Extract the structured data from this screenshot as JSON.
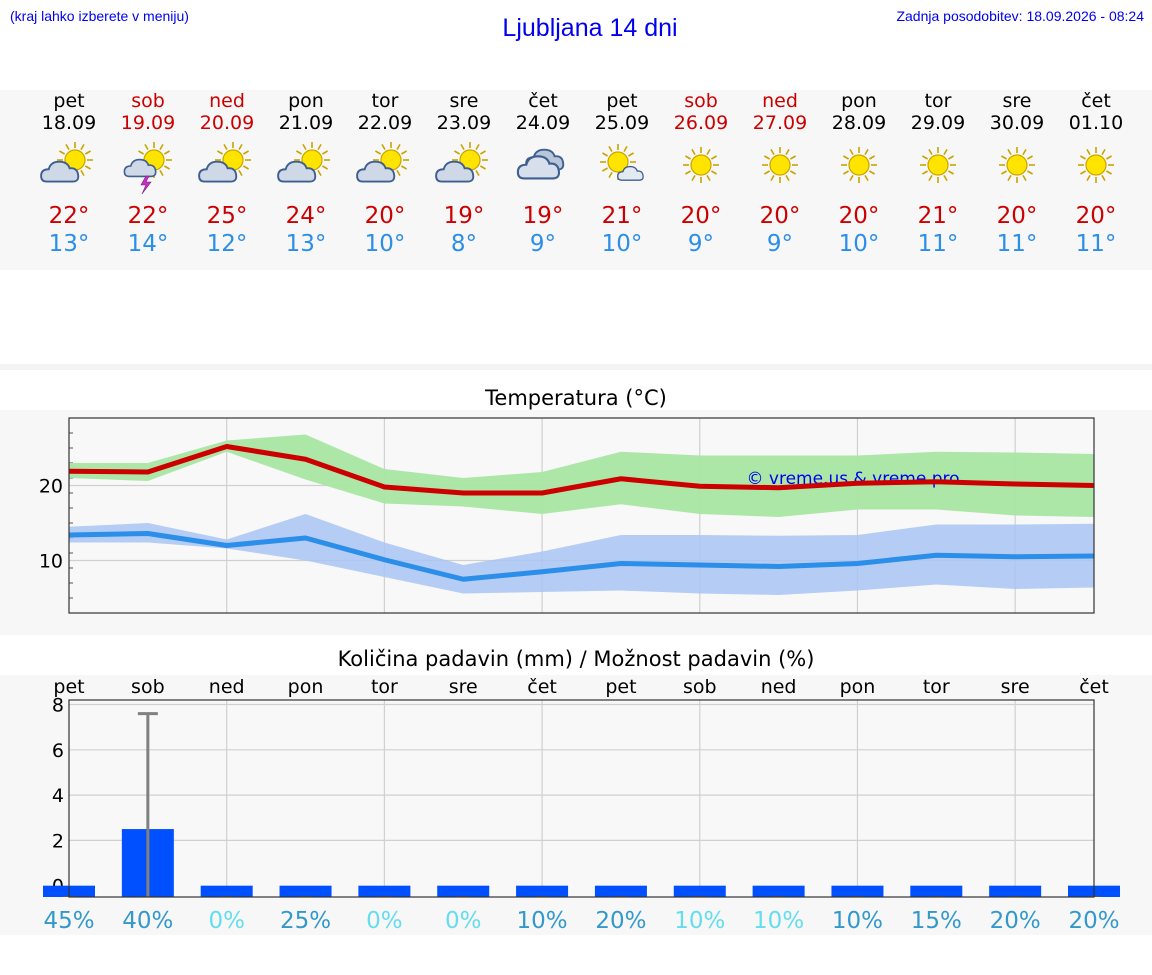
{
  "header": {
    "hint": "(kraj lahko izberete v meniju)",
    "title": "Ljubljana 14 dni",
    "updated": "Zadnja posodobitev: 18.09.2026 - 08:24"
  },
  "colors": {
    "max": "#cc0000",
    "min": "#2b8ee8",
    "max_band": "#a8e6a3",
    "min_band": "#a9c4f5",
    "bar": "#0050ff",
    "link": "#0000ee"
  },
  "days": [
    {
      "name": "pet",
      "date": "18.09",
      "max": "22°",
      "min": "13°",
      "icon": "partly-cloudy-icon",
      "weekend": false
    },
    {
      "name": "sob",
      "date": "19.09",
      "max": "22°",
      "min": "14°",
      "icon": "thunderstorm-sun-icon",
      "weekend": true
    },
    {
      "name": "ned",
      "date": "20.09",
      "max": "25°",
      "min": "12°",
      "icon": "partly-cloudy-icon",
      "weekend": true
    },
    {
      "name": "pon",
      "date": "21.09",
      "max": "24°",
      "min": "13°",
      "icon": "partly-cloudy-icon",
      "weekend": false
    },
    {
      "name": "tor",
      "date": "22.09",
      "max": "20°",
      "min": "10°",
      "icon": "partly-cloudy-icon",
      "weekend": false
    },
    {
      "name": "sre",
      "date": "23.09",
      "max": "19°",
      "min": "8°",
      "icon": "partly-cloudy-icon",
      "weekend": false
    },
    {
      "name": "čet",
      "date": "24.09",
      "max": "19°",
      "min": "9°",
      "icon": "cloudy-icon",
      "weekend": false
    },
    {
      "name": "pet",
      "date": "25.09",
      "max": "21°",
      "min": "10°",
      "icon": "mostly-sunny-icon",
      "weekend": false
    },
    {
      "name": "sob",
      "date": "26.09",
      "max": "20°",
      "min": "9°",
      "icon": "sunny-icon",
      "weekend": true
    },
    {
      "name": "ned",
      "date": "27.09",
      "max": "20°",
      "min": "9°",
      "icon": "sunny-icon",
      "weekend": true
    },
    {
      "name": "pon",
      "date": "28.09",
      "max": "20°",
      "min": "10°",
      "icon": "sunny-icon",
      "weekend": false
    },
    {
      "name": "tor",
      "date": "29.09",
      "max": "21°",
      "min": "11°",
      "icon": "sunny-icon",
      "weekend": false
    },
    {
      "name": "sre",
      "date": "30.09",
      "max": "20°",
      "min": "11°",
      "icon": "sunny-icon",
      "weekend": false
    },
    {
      "name": "čet",
      "date": "01.10",
      "max": "20°",
      "min": "11°",
      "icon": "sunny-icon",
      "weekend": false
    }
  ],
  "chart_data": [
    {
      "type": "line",
      "title": "Temperatura (°C)",
      "x": [
        "18.09",
        "19.09",
        "20.09",
        "21.09",
        "22.09",
        "23.09",
        "24.09",
        "25.09",
        "26.09",
        "27.09",
        "28.09",
        "29.09",
        "30.09",
        "01.10"
      ],
      "ylim": [
        3,
        29
      ],
      "yticks": [
        10,
        20
      ],
      "grid": true,
      "watermark": "© vreme.us & vreme.pro",
      "series": [
        {
          "values": [
            21.9,
            21.8,
            25.2,
            23.5,
            19.8,
            19.0,
            19.0,
            20.9,
            19.9,
            19.7,
            20.3,
            20.5,
            20.2,
            20.0
          ],
          "band_upper": [
            23.0,
            23.0,
            26.0,
            26.8,
            22.2,
            21.0,
            21.8,
            24.5,
            24.0,
            24.0,
            24.0,
            24.5,
            24.4,
            24.2
          ],
          "band_lower": [
            21.0,
            20.6,
            24.5,
            20.8,
            17.6,
            17.2,
            16.2,
            17.5,
            16.2,
            15.8,
            16.8,
            16.8,
            16.0,
            15.8
          ]
        },
        {
          "values": [
            13.4,
            13.6,
            12.0,
            13.0,
            10.1,
            7.5,
            8.5,
            9.6,
            9.4,
            9.2,
            9.6,
            10.7,
            10.5,
            10.6
          ],
          "band_upper": [
            14.5,
            15.0,
            12.8,
            16.2,
            12.4,
            9.4,
            11.2,
            13.4,
            13.4,
            13.3,
            13.4,
            14.8,
            14.8,
            14.9
          ],
          "band_lower": [
            12.4,
            12.4,
            11.6,
            10.0,
            7.8,
            5.6,
            5.8,
            6.0,
            5.6,
            5.4,
            6.0,
            6.8,
            6.2,
            6.4
          ]
        }
      ]
    },
    {
      "type": "bar",
      "title": "Količina padavin (mm) / Možnost padavin (%)",
      "categories": [
        "pet",
        "sob",
        "ned",
        "pon",
        "tor",
        "sre",
        "čet",
        "pet",
        "sob",
        "ned",
        "pon",
        "tor",
        "sre",
        "čet"
      ],
      "values": [
        0,
        2.5,
        0,
        0,
        0,
        0,
        0,
        0,
        0,
        0,
        0,
        0,
        0,
        0
      ],
      "range_max": [
        0,
        7.6,
        0,
        0,
        0,
        0,
        0,
        0,
        0,
        0,
        0,
        0,
        0,
        0
      ],
      "ylim": [
        -0.5,
        8.2
      ],
      "yticks": [
        0,
        2,
        4,
        6,
        8
      ],
      "probability": [
        "45%",
        "40%",
        "0%",
        "25%",
        "0%",
        "0%",
        "10%",
        "20%",
        "10%",
        "10%",
        "10%",
        "15%",
        "20%",
        "20%"
      ],
      "probability_colors": [
        "#3399cc",
        "#3399cc",
        "#66ddee",
        "#3399cc",
        "#66ddee",
        "#66ddee",
        "#3399cc",
        "#3399cc",
        "#66ddee",
        "#66ddee",
        "#3399cc",
        "#3399cc",
        "#3399cc",
        "#3399cc"
      ],
      "grid": true
    }
  ]
}
